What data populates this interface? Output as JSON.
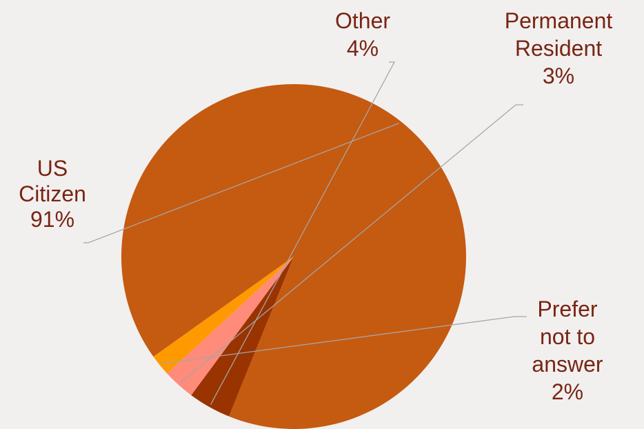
{
  "chart_data": {
    "type": "pie",
    "title": "",
    "start_angle_deg": 144.5,
    "direction": "clockwise",
    "slices": [
      {
        "label": "US Citizen",
        "value": 91,
        "display": "91%",
        "color": "#c55a11"
      },
      {
        "label": "Other",
        "value": 4,
        "display": "4%",
        "color": "#993300"
      },
      {
        "label": "Permanent Resident",
        "value": 3,
        "display": "3%",
        "color": "#ff8b7a"
      },
      {
        "label": "Prefer not to answer",
        "value": 2,
        "display": "2%",
        "color": "#ff9900"
      }
    ],
    "label_lines": {
      "US Citizen": [
        "US",
        "Citizen",
        "91%"
      ],
      "Other": [
        "Other",
        "4%"
      ],
      "Permanent Resident": [
        "Permanent",
        "Resident",
        "3%"
      ],
      "Prefer not to answer": [
        "Prefer",
        "not to",
        "answer",
        "2%"
      ]
    },
    "colors": {
      "background": "#f1f0ef",
      "label_text": "#7a2413",
      "leader_line": "#a6a6a6"
    },
    "legend": "none"
  }
}
